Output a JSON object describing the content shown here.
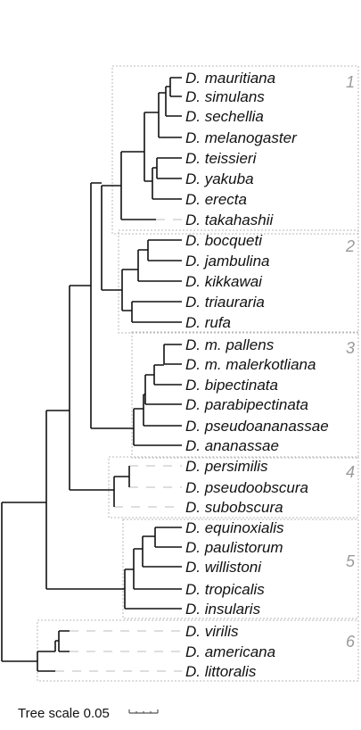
{
  "taxa": [
    "D. mauritiana",
    "D. simulans",
    "D. sechellia",
    "D. melanogaster",
    "D. teissieri",
    "D. yakuba",
    "D. erecta",
    "D. takahashii",
    "D. bocqueti",
    "D. jambulina",
    "D. kikkawai",
    "D. triauraria",
    "D. rufa",
    "D. m. pallens",
    "D. m. malerkotliana",
    "D. bipectinata",
    "D. parabipectinata",
    "D. pseudoananassae",
    "D. ananassae",
    "D. persimilis",
    "D. pseudoobscura",
    "D. subobscura",
    "D. equinoxialis",
    "D. paulistorum",
    "D. willistoni",
    "D. tropicalis",
    "D. insularis",
    "D. virilis",
    "D. americana",
    "D. littoralis"
  ],
  "groups": [
    "1",
    "2",
    "3",
    "4",
    "5",
    "6"
  ],
  "scale": {
    "label": "Tree scale 0.05"
  }
}
